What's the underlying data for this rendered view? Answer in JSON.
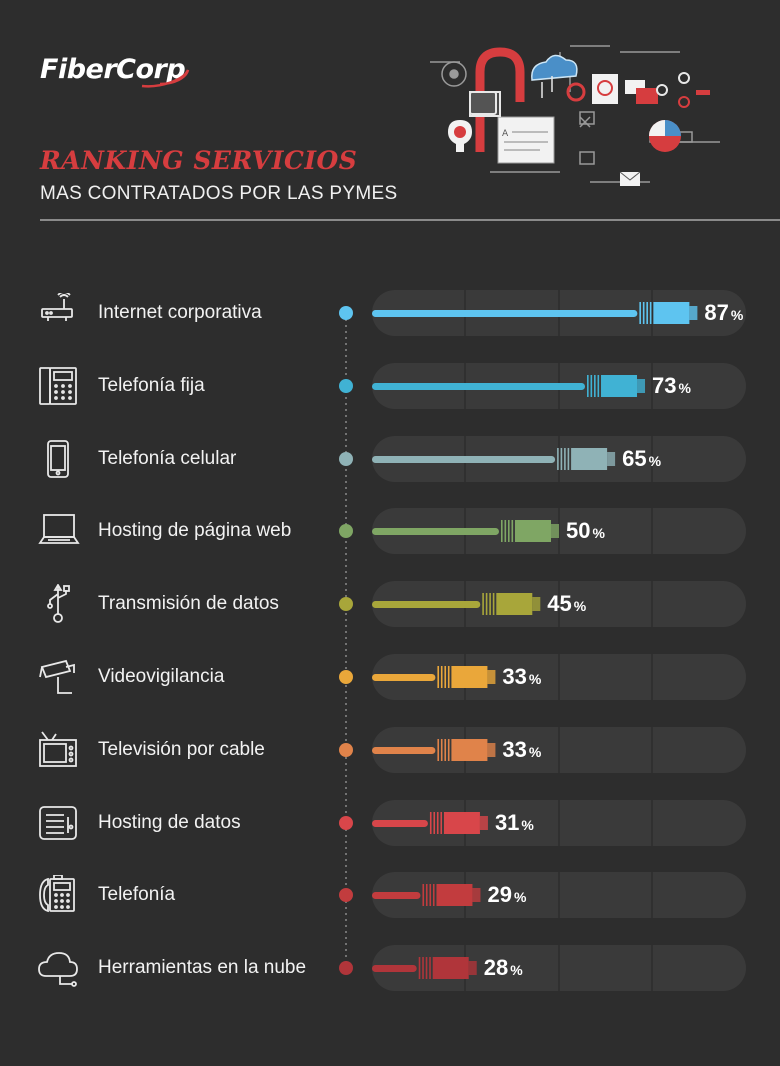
{
  "brand": {
    "logo_text": "FiberCorp"
  },
  "header": {
    "title": "RANKING SERVICIOS",
    "subtitle": "MAS CONTRATADOS POR LAS PYMES"
  },
  "chart_data": {
    "type": "bar",
    "orientation": "horizontal",
    "title": "RANKING SERVICIOS",
    "subtitle": "MAS CONTRATADOS POR LAS PYMES",
    "unit": "%",
    "xlim": [
      0,
      100
    ],
    "categories": [
      "Internet corporativa",
      "Telefonía fija",
      "Telefonía celular",
      "Hosting de página web",
      "Transmisión de datos",
      "Videovigilancia",
      "Televisión por cable",
      "Hosting de datos",
      "Telefonía",
      "Herramientas en la nube"
    ],
    "values": [
      87,
      73,
      65,
      50,
      45,
      33,
      33,
      31,
      29,
      28
    ],
    "icons": [
      "router-icon",
      "desk-phone-icon",
      "mobile-phone-icon",
      "laptop-icon",
      "usb-icon",
      "security-camera-icon",
      "tv-icon",
      "server-icon",
      "phone-icon",
      "cloud-icon"
    ],
    "colors": [
      "#5ec4f0",
      "#40b2d4",
      "#8fb2b6",
      "#7fa664",
      "#a8a63a",
      "#eaa73a",
      "#e0834a",
      "#d8464a",
      "#c23c3e",
      "#b0353a"
    ]
  }
}
